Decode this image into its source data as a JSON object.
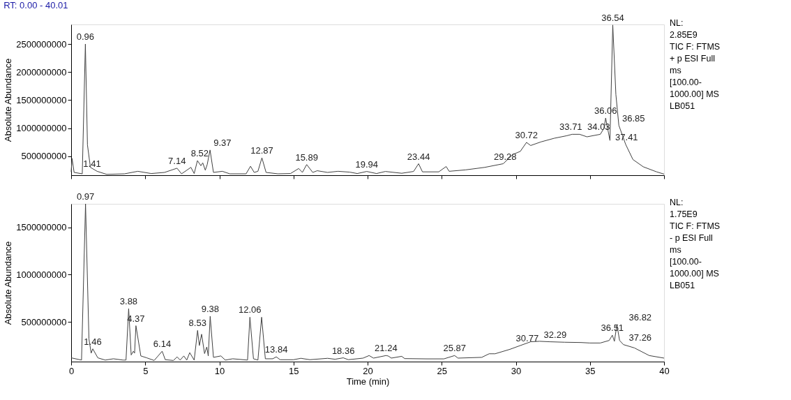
{
  "chart_data": [
    {
      "type": "line",
      "title": "RT: 0.00 - 40.01",
      "ylabel": "Absolute Abundance",
      "xlim": [
        0,
        40
      ],
      "xticks": [
        0,
        5,
        10,
        15,
        20,
        25,
        30,
        35,
        40
      ],
      "ylim": [
        160000000,
        2850000000
      ],
      "yticks": [
        500000000,
        1000000000,
        1500000000,
        2000000000,
        2500000000
      ],
      "tick_labels": "y",
      "grid": false,
      "series": [
        {
          "color": "#404040",
          "x": [
            0,
            0.06,
            0.2,
            0.75,
            0.96,
            1.1,
            1.3,
            1.75,
            2.4,
            3.6,
            4.5,
            5.4,
            6.3,
            7.14,
            7.45,
            8.08,
            8.3,
            8.52,
            8.75,
            8.88,
            9.05,
            9.18,
            9.37,
            9.6,
            10.2,
            10.7,
            11.8,
            12.1,
            12.35,
            12.6,
            12.87,
            13.15,
            13.95,
            14.8,
            15.35,
            15.6,
            15.89,
            16.3,
            16.6,
            17.3,
            18.0,
            18.8,
            19.3,
            19.94,
            20.6,
            21.2,
            22.3,
            23.1,
            23.44,
            23.7,
            24.8,
            25.3,
            25.5,
            26.6,
            27.9,
            29.15,
            29.8,
            30.3,
            30.72,
            31.0,
            31.7,
            32.6,
            33.45,
            33.8,
            34.3,
            34.8,
            35.2,
            35.7,
            35.95,
            36.06,
            36.35,
            36.54,
            36.75,
            36.95,
            37.41,
            37.9,
            38.6,
            39.5,
            40.0
          ],
          "values": [
            220000000,
            460000000,
            210000000,
            185000000,
            2500000000,
            700000000,
            300000000,
            230000000,
            175000000,
            185000000,
            230000000,
            190000000,
            210000000,
            285000000,
            185000000,
            300000000,
            190000000,
            420000000,
            330000000,
            380000000,
            250000000,
            350000000,
            610000000,
            210000000,
            230000000,
            185000000,
            185000000,
            320000000,
            210000000,
            230000000,
            470000000,
            210000000,
            185000000,
            190000000,
            280000000,
            210000000,
            350000000,
            210000000,
            240000000,
            210000000,
            230000000,
            215000000,
            190000000,
            227000000,
            190000000,
            227000000,
            195000000,
            227000000,
            365000000,
            220000000,
            220000000,
            315000000,
            230000000,
            255000000,
            300000000,
            365000000,
            530000000,
            585000000,
            745000000,
            690000000,
            755000000,
            820000000,
            865000000,
            890000000,
            890000000,
            845000000,
            865000000,
            890000000,
            1000000000,
            1180000000,
            780000000,
            2840000000,
            1600000000,
            1050000000,
            710000000,
            440000000,
            310000000,
            220000000,
            180000000
          ]
        }
      ],
      "annotations": [
        {
          "text": "0.96",
          "x": 0.96,
          "y": 2500000000
        },
        {
          "text": "1.41",
          "x": 1.41,
          "y": 230000000
        },
        {
          "text": "7.14",
          "x": 7.14,
          "y": 285000000
        },
        {
          "text": "8.52",
          "x": 8.52,
          "y": 420000000
        },
        {
          "text": "9.37",
          "x": 9.37,
          "y": 610000000
        },
        {
          "text": "12.87",
          "x": 12.87,
          "y": 470000000
        },
        {
          "text": "15.89",
          "x": 15.89,
          "y": 350000000
        },
        {
          "text": "19.94",
          "x": 19.94,
          "y": 227000000
        },
        {
          "text": "23.44",
          "x": 23.44,
          "y": 365000000
        },
        {
          "text": "29.28",
          "x": 29.28,
          "y": 365000000
        },
        {
          "text": "30.72",
          "x": 30.72,
          "y": 745000000
        },
        {
          "text": "33.71",
          "x": 33.71,
          "y": 890000000
        },
        {
          "text": "34.03",
          "x": 34.03,
          "y": 890000000
        },
        {
          "text": "36.06",
          "x": 36.06,
          "y": 1180000000
        },
        {
          "text": "36.54",
          "x": 36.54,
          "y": 2840000000
        },
        {
          "text": "36.85",
          "x": 36.85,
          "y": 1050000000
        },
        {
          "text": "37.41",
          "x": 37.41,
          "y": 710000000
        },
        "NL:",
        "2.85E9",
        "TIC F: FTMS",
        "+ p ESI Full",
        "ms",
        "[100.00-",
        "1000.00]  MS",
        "LB051"
      ]
    },
    {
      "type": "line",
      "ylabel": "Absolute Abundance",
      "xlabel": "Time (min)",
      "xlim": [
        0,
        40
      ],
      "xticks": [
        0,
        5,
        10,
        15,
        20,
        25,
        30,
        35,
        40
      ],
      "ylim": [
        80000000,
        1750000000
      ],
      "yticks": [
        500000000,
        1000000000,
        1500000000
      ],
      "grid": false,
      "series": [
        {
          "color": "#404040",
          "x": [
            0,
            0.7,
            0.97,
            1.2,
            1.35,
            1.46,
            1.8,
            2.3,
            2.85,
            3.5,
            3.7,
            3.88,
            4.05,
            4.2,
            4.28,
            4.37,
            4.7,
            5.1,
            5.6,
            6.14,
            6.35,
            6.9,
            7.15,
            7.35,
            7.6,
            7.8,
            8.0,
            8.3,
            8.53,
            8.65,
            8.8,
            9.0,
            9.15,
            9.25,
            9.38,
            9.6,
            10.1,
            10.4,
            10.9,
            11.9,
            12.06,
            12.3,
            12.6,
            12.85,
            13.1,
            13.6,
            13.84,
            14.1,
            15.0,
            15.5,
            16.1,
            17.3,
            17.8,
            18.36,
            18.7,
            19.7,
            20.1,
            20.4,
            21.24,
            21.4,
            21.6,
            22.3,
            22.5,
            24.0,
            25.15,
            25.87,
            26.1,
            27.7,
            28.2,
            28.6,
            29.6,
            30.3,
            31.0,
            31.6,
            32.29,
            33.3,
            34.4,
            35.0,
            35.7,
            36.3,
            36.51,
            36.65,
            36.82,
            37.0,
            37.26,
            38.0,
            39.0,
            40.0
          ],
          "values": [
            120000000,
            96000000,
            1750000000,
            320000000,
            170000000,
            215000000,
            120000000,
            96000000,
            110000000,
            96000000,
            96000000,
            640000000,
            150000000,
            190000000,
            170000000,
            460000000,
            140000000,
            120000000,
            92000000,
            190000000,
            100000000,
            92000000,
            130000000,
            96000000,
            140000000,
            96000000,
            175000000,
            96000000,
            410000000,
            250000000,
            370000000,
            165000000,
            235000000,
            140000000,
            560000000,
            125000000,
            140000000,
            96000000,
            110000000,
            96000000,
            550000000,
            110000000,
            96000000,
            550000000,
            110000000,
            110000000,
            130000000,
            100000000,
            100000000,
            115000000,
            100000000,
            115000000,
            105000000,
            120000000,
            100000000,
            117000000,
            144000000,
            117000000,
            144000000,
            139000000,
            117000000,
            136000000,
            112000000,
            109000000,
            109000000,
            144000000,
            117000000,
            125000000,
            163000000,
            163000000,
            210000000,
            250000000,
            290000000,
            295000000,
            290000000,
            285000000,
            282000000,
            277000000,
            277000000,
            304000000,
            360000000,
            295000000,
            470000000,
            304000000,
            260000000,
            225000000,
            144000000,
            117000000
          ]
        }
      ],
      "annotations": [
        {
          "text": "0.97",
          "x": 0.97,
          "y": 1750000000
        },
        {
          "text": "1.46",
          "x": 1.46,
          "y": 215000000
        },
        {
          "text": "3.88",
          "x": 3.88,
          "y": 640000000
        },
        {
          "text": "4.37",
          "x": 4.37,
          "y": 460000000
        },
        {
          "text": "6.14",
          "x": 6.14,
          "y": 190000000
        },
        {
          "text": "8.53",
          "x": 8.53,
          "y": 410000000
        },
        {
          "text": "9.38",
          "x": 9.38,
          "y": 560000000
        },
        {
          "text": "12.06",
          "x": 12.06,
          "y": 550000000
        },
        {
          "text": "13.84",
          "x": 13.84,
          "y": 130000000
        },
        {
          "text": "18.36",
          "x": 18.36,
          "y": 120000000
        },
        {
          "text": "21.24",
          "x": 21.24,
          "y": 144000000
        },
        {
          "text": "25.87",
          "x": 25.87,
          "y": 144000000
        },
        {
          "text": "30.77",
          "x": 30.77,
          "y": 250000000
        },
        {
          "text": "32.29",
          "x": 32.29,
          "y": 290000000
        },
        {
          "text": "36.51",
          "x": 36.51,
          "y": 360000000
        },
        {
          "text": "36.82",
          "x": 36.82,
          "y": 470000000
        },
        {
          "text": "37.26",
          "x": 37.26,
          "y": 260000000
        },
        "NL:",
        "1.75E9",
        "TIC F: FTMS",
        "- p ESI Full",
        "ms",
        "[100.00-",
        "1000.00]  MS",
        "LB051"
      ]
    }
  ]
}
